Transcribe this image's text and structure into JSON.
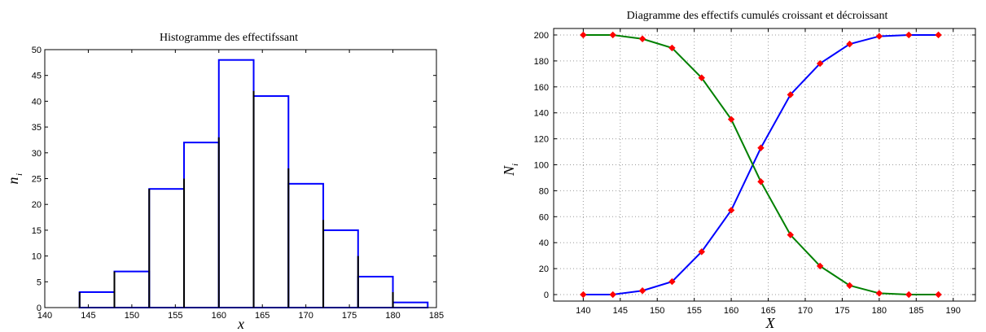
{
  "chart_data": [
    {
      "type": "bar",
      "title": "Histogramme des effectifssant",
      "xlabel": "x",
      "ylabel": "n",
      "ylabel_sub": "i",
      "xlim": [
        140,
        185
      ],
      "ylim": [
        0,
        50
      ],
      "xticks": [
        140,
        145,
        150,
        155,
        160,
        165,
        170,
        175,
        180,
        185
      ],
      "yticks": [
        0,
        5,
        10,
        15,
        20,
        25,
        30,
        35,
        40,
        45,
        50
      ],
      "bins": [
        {
          "x0": 144,
          "x1": 148,
          "value": 3
        },
        {
          "x0": 148,
          "x1": 152,
          "value": 7
        },
        {
          "x0": 152,
          "x1": 156,
          "value": 23
        },
        {
          "x0": 156,
          "x1": 160,
          "value": 32
        },
        {
          "x0": 160,
          "x1": 164,
          "value": 48
        },
        {
          "x0": 164,
          "x1": 168,
          "value": 41
        },
        {
          "x0": 168,
          "x1": 172,
          "value": 24
        },
        {
          "x0": 172,
          "x1": 176,
          "value": 15
        },
        {
          "x0": 176,
          "x1": 180,
          "value": 6
        },
        {
          "x0": 180,
          "x1": 184,
          "value": 1
        }
      ],
      "stems": [
        {
          "x": 144,
          "value": 3
        },
        {
          "x": 148,
          "value": 7
        },
        {
          "x": 152,
          "value": 23
        },
        {
          "x": 156,
          "value": 25
        },
        {
          "x": 160,
          "value": 33
        },
        {
          "x": 164,
          "value": 42
        },
        {
          "x": 168,
          "value": 27
        },
        {
          "x": 172,
          "value": 17
        },
        {
          "x": 176,
          "value": 10
        },
        {
          "x": 180,
          "value": 3
        }
      ],
      "colors": {
        "bar_outline": "#0000ff",
        "stem": "#000000"
      },
      "grid": false
    },
    {
      "type": "line",
      "title": "Diagramme des effectifs cumulés croissant et décroissant",
      "xlabel": "X",
      "ylabel": "N",
      "ylabel_sub": "i",
      "xlim": [
        136,
        193
      ],
      "ylim": [
        -5,
        205
      ],
      "xticks": [
        140,
        145,
        150,
        155,
        160,
        165,
        170,
        175,
        180,
        185,
        190
      ],
      "yticks": [
        0,
        20,
        40,
        60,
        80,
        100,
        120,
        140,
        160,
        180,
        200
      ],
      "x": [
        140,
        144,
        148,
        152,
        156,
        160,
        164,
        168,
        172,
        176,
        180,
        184,
        188
      ],
      "series": [
        {
          "values": [
            0,
            0,
            3,
            10,
            33,
            65,
            113,
            154,
            178,
            193,
            199,
            200,
            200
          ],
          "color": "#0000ff"
        },
        {
          "values": [
            200,
            200,
            197,
            190,
            167,
            135,
            87,
            46,
            22,
            7,
            1,
            0,
            0
          ],
          "color": "#008000"
        }
      ],
      "marker_color": "#ff0000",
      "grid": true
    }
  ]
}
